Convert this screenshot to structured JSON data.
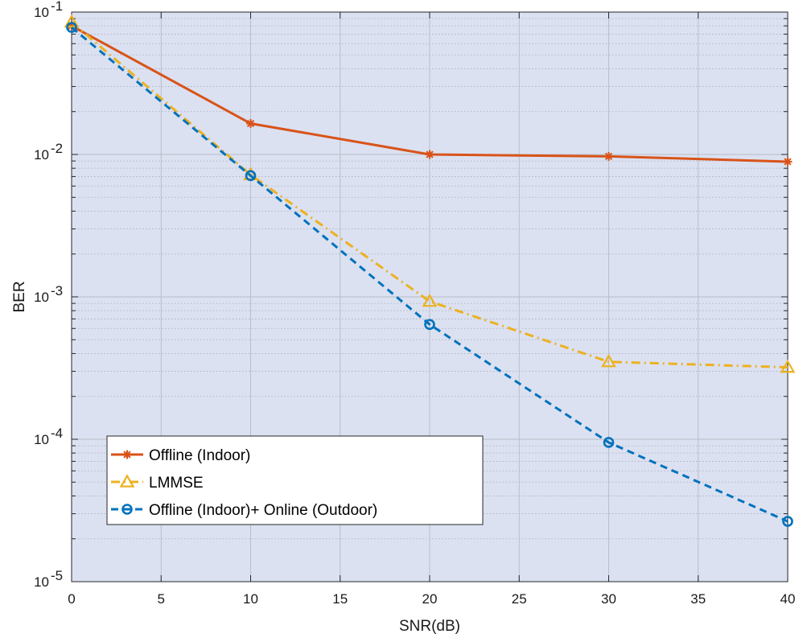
{
  "chart_data": {
    "type": "line",
    "xlabel": "SNR(dB)",
    "ylabel": "BER",
    "xlim": [
      0,
      40
    ],
    "ylim": [
      1e-05,
      0.1
    ],
    "yscale": "log",
    "grid": true,
    "minor_grid": true,
    "legend_position": "bottom-left",
    "plot_background": "#dbe1f1",
    "x_ticks": [
      0,
      5,
      10,
      15,
      20,
      25,
      30,
      35,
      40
    ],
    "x_tick_labels": [
      "0",
      "5",
      "10",
      "15",
      "20",
      "25",
      "30",
      "35",
      "40"
    ],
    "y_ticks": [
      1e-05,
      0.0001,
      0.001,
      0.01,
      0.1
    ],
    "y_tick_labels": [
      {
        "base": "10",
        "exp": "-5"
      },
      {
        "base": "10",
        "exp": "-4"
      },
      {
        "base": "10",
        "exp": "-3"
      },
      {
        "base": "10",
        "exp": "-2"
      },
      {
        "base": "10",
        "exp": "-1"
      }
    ],
    "series": [
      {
        "name": "Offline (Indoor)",
        "color": "#d95319",
        "line_style": "solid",
        "marker": "asterisk",
        "x": [
          0,
          10,
          20,
          30,
          40
        ],
        "y": [
          0.08,
          0.0165,
          0.01,
          0.0097,
          0.0089
        ]
      },
      {
        "name": "LMMSE",
        "color": "#edb120",
        "line_style": "dash-dot",
        "marker": "triangle",
        "x": [
          0,
          10,
          20,
          30,
          40
        ],
        "y": [
          0.085,
          0.0072,
          0.00093,
          0.00035,
          0.00032
        ]
      },
      {
        "name": "Offline (Indoor)+ Online (Outdoor)",
        "color": "#0072bd",
        "line_style": "dashed",
        "marker": "circle",
        "x": [
          0,
          10,
          20,
          30,
          40
        ],
        "y": [
          0.078,
          0.0071,
          0.00064,
          9.5e-05,
          2.65e-05
        ]
      }
    ]
  }
}
